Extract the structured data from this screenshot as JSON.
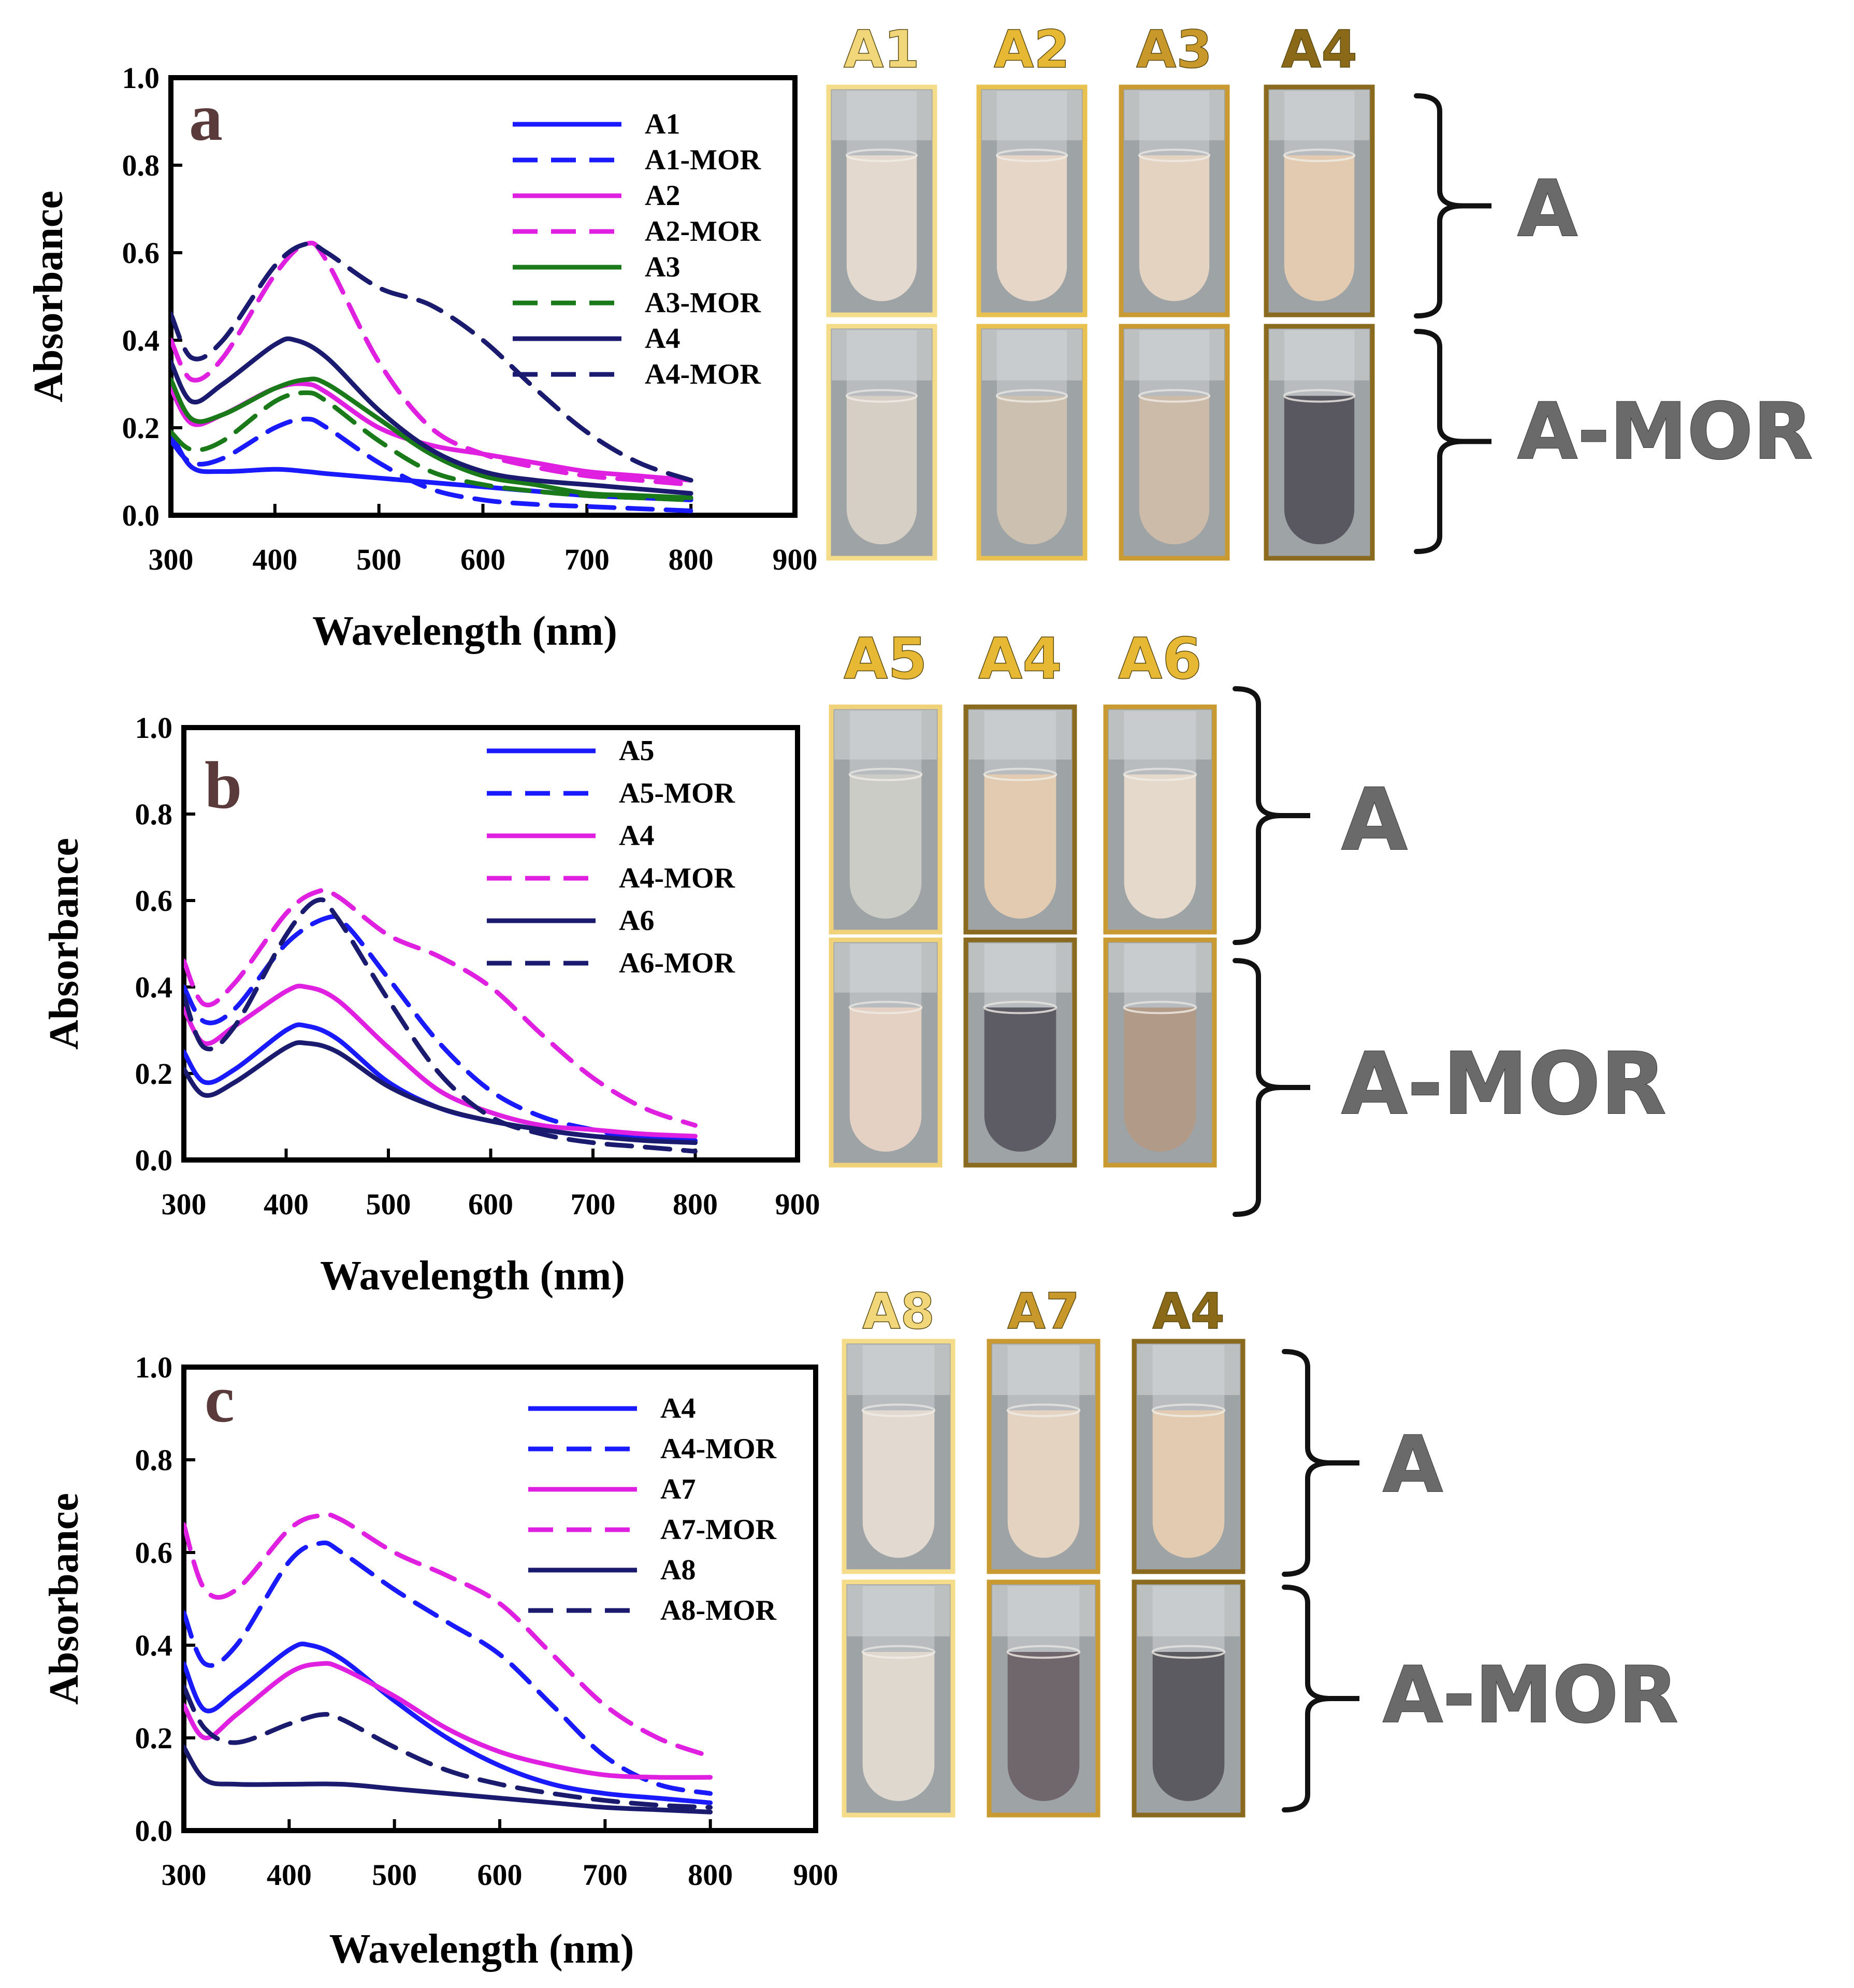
{
  "colors": {
    "blue": "#1a1aff",
    "magenta": "#e020e0",
    "green": "#1a7a1a",
    "navy": "#1a1a6e",
    "bracket": "#111111",
    "group_label": "#6a6a6a"
  },
  "chart_data": [
    {
      "type": "line",
      "panel": "a",
      "xlabel": "Wavelength (nm)",
      "ylabel": "Absorbance",
      "xlim": [
        300,
        900
      ],
      "ylim": [
        0.0,
        1.0
      ],
      "xticks": [
        "300",
        "400",
        "500",
        "600",
        "700",
        "800",
        "900"
      ],
      "yticks": [
        "0.0",
        "0.2",
        "0.4",
        "0.6",
        "0.8",
        "1.0"
      ],
      "legend_position": "top-right",
      "series": [
        {
          "name": "A1",
          "color": "#1a1aff",
          "dash": "solid",
          "x": [
            300,
            320,
            350,
            400,
            430,
            450,
            500,
            550,
            600,
            650,
            700,
            750,
            800
          ],
          "y": [
            0.19,
            0.11,
            0.1,
            0.105,
            0.1,
            0.095,
            0.085,
            0.075,
            0.065,
            0.055,
            0.045,
            0.04,
            0.035
          ]
        },
        {
          "name": "A1-MOR",
          "color": "#1a1aff",
          "dash": "dashed",
          "x": [
            300,
            320,
            350,
            400,
            430,
            450,
            500,
            550,
            600,
            650,
            700,
            750,
            800
          ],
          "y": [
            0.17,
            0.12,
            0.13,
            0.2,
            0.22,
            0.2,
            0.12,
            0.06,
            0.035,
            0.025,
            0.02,
            0.015,
            0.01
          ]
        },
        {
          "name": "A2",
          "color": "#e020e0",
          "dash": "solid",
          "x": [
            300,
            320,
            350,
            400,
            430,
            450,
            500,
            550,
            600,
            650,
            700,
            750,
            800
          ],
          "y": [
            0.29,
            0.21,
            0.23,
            0.29,
            0.3,
            0.28,
            0.2,
            0.16,
            0.14,
            0.12,
            0.1,
            0.09,
            0.08
          ]
        },
        {
          "name": "A2-MOR",
          "color": "#e020e0",
          "dash": "dashed",
          "x": [
            300,
            320,
            350,
            400,
            430,
            450,
            500,
            550,
            600,
            650,
            700,
            750,
            800
          ],
          "y": [
            0.4,
            0.31,
            0.36,
            0.55,
            0.62,
            0.58,
            0.35,
            0.2,
            0.14,
            0.11,
            0.09,
            0.08,
            0.07
          ]
        },
        {
          "name": "A3",
          "color": "#1a7a1a",
          "dash": "solid",
          "x": [
            300,
            320,
            350,
            400,
            430,
            450,
            500,
            550,
            600,
            650,
            700,
            750,
            800
          ],
          "y": [
            0.31,
            0.22,
            0.23,
            0.29,
            0.31,
            0.3,
            0.22,
            0.14,
            0.09,
            0.07,
            0.05,
            0.045,
            0.04
          ]
        },
        {
          "name": "A3-MOR",
          "color": "#1a7a1a",
          "dash": "dashed",
          "x": [
            300,
            320,
            350,
            400,
            430,
            450,
            500,
            550,
            600,
            650,
            700,
            750,
            800
          ],
          "y": [
            0.19,
            0.15,
            0.17,
            0.26,
            0.28,
            0.26,
            0.17,
            0.1,
            0.07,
            0.055,
            0.045,
            0.04,
            0.035
          ]
        },
        {
          "name": "A4",
          "color": "#1a1a6e",
          "dash": "solid",
          "x": [
            300,
            320,
            350,
            400,
            420,
            450,
            500,
            550,
            600,
            650,
            700,
            750,
            800
          ],
          "y": [
            0.35,
            0.26,
            0.3,
            0.39,
            0.4,
            0.36,
            0.24,
            0.15,
            0.1,
            0.08,
            0.07,
            0.06,
            0.05
          ]
        },
        {
          "name": "A4-MOR",
          "color": "#1a1a6e",
          "dash": "dashed",
          "x": [
            300,
            320,
            350,
            400,
            430,
            450,
            500,
            550,
            600,
            650,
            700,
            750,
            800
          ],
          "y": [
            0.46,
            0.36,
            0.4,
            0.57,
            0.62,
            0.6,
            0.52,
            0.48,
            0.4,
            0.29,
            0.19,
            0.12,
            0.08
          ]
        }
      ]
    },
    {
      "type": "line",
      "panel": "b",
      "xlabel": "Wavelength (nm)",
      "ylabel": "Absorbance",
      "xlim": [
        300,
        900
      ],
      "ylim": [
        0.0,
        1.0
      ],
      "xticks": [
        "300",
        "400",
        "500",
        "600",
        "700",
        "800",
        "900"
      ],
      "yticks": [
        "0.0",
        "0.2",
        "0.4",
        "0.6",
        "0.8",
        "1.0"
      ],
      "legend_position": "top-right",
      "series": [
        {
          "name": "A5",
          "color": "#1a1aff",
          "dash": "solid",
          "x": [
            300,
            320,
            350,
            400,
            420,
            450,
            500,
            550,
            600,
            650,
            700,
            750,
            800
          ],
          "y": [
            0.25,
            0.18,
            0.21,
            0.3,
            0.31,
            0.28,
            0.18,
            0.12,
            0.09,
            0.07,
            0.055,
            0.05,
            0.045
          ]
        },
        {
          "name": "A5-MOR",
          "color": "#1a1aff",
          "dash": "dashed",
          "x": [
            300,
            320,
            350,
            400,
            440,
            460,
            500,
            550,
            600,
            650,
            700,
            750,
            800
          ],
          "y": [
            0.4,
            0.32,
            0.35,
            0.5,
            0.56,
            0.54,
            0.42,
            0.27,
            0.16,
            0.1,
            0.07,
            0.05,
            0.04
          ]
        },
        {
          "name": "A4",
          "color": "#e020e0",
          "dash": "solid",
          "x": [
            300,
            320,
            350,
            400,
            420,
            450,
            500,
            550,
            600,
            650,
            700,
            750,
            800
          ],
          "y": [
            0.35,
            0.27,
            0.31,
            0.39,
            0.4,
            0.37,
            0.26,
            0.16,
            0.11,
            0.08,
            0.07,
            0.06,
            0.055
          ]
        },
        {
          "name": "A4-MOR",
          "color": "#e020e0",
          "dash": "dashed",
          "x": [
            300,
            320,
            350,
            400,
            430,
            450,
            500,
            550,
            600,
            650,
            700,
            750,
            800
          ],
          "y": [
            0.46,
            0.36,
            0.41,
            0.57,
            0.62,
            0.61,
            0.52,
            0.47,
            0.4,
            0.29,
            0.19,
            0.12,
            0.08
          ]
        },
        {
          "name": "A6",
          "color": "#1a1a6e",
          "dash": "solid",
          "x": [
            300,
            320,
            350,
            400,
            420,
            450,
            500,
            550,
            600,
            650,
            700,
            750,
            800
          ],
          "y": [
            0.21,
            0.15,
            0.18,
            0.26,
            0.27,
            0.25,
            0.17,
            0.12,
            0.09,
            0.07,
            0.055,
            0.045,
            0.04
          ]
        },
        {
          "name": "A6-MOR",
          "color": "#1a1a6e",
          "dash": "dashed",
          "x": [
            300,
            320,
            350,
            400,
            430,
            450,
            500,
            550,
            600,
            650,
            700,
            750,
            800
          ],
          "y": [
            0.38,
            0.26,
            0.31,
            0.52,
            0.6,
            0.56,
            0.37,
            0.2,
            0.1,
            0.06,
            0.04,
            0.03,
            0.02
          ]
        }
      ]
    },
    {
      "type": "line",
      "panel": "c",
      "xlabel": "Wavelength (nm)",
      "ylabel": "Absorbance",
      "xlim": [
        300,
        900
      ],
      "ylim": [
        0.0,
        1.0
      ],
      "xticks": [
        "300",
        "400",
        "500",
        "600",
        "700",
        "800",
        "900"
      ],
      "yticks": [
        "0.0",
        "0.2",
        "0.4",
        "0.6",
        "0.8",
        "1.0"
      ],
      "legend_position": "top-right",
      "series": [
        {
          "name": "A4",
          "color": "#1a1aff",
          "dash": "solid",
          "x": [
            300,
            320,
            350,
            400,
            420,
            450,
            500,
            550,
            600,
            650,
            700,
            750,
            800
          ],
          "y": [
            0.36,
            0.26,
            0.3,
            0.39,
            0.4,
            0.37,
            0.28,
            0.2,
            0.14,
            0.1,
            0.08,
            0.07,
            0.06
          ]
        },
        {
          "name": "A4-MOR",
          "color": "#1a1aff",
          "dash": "dashed",
          "x": [
            300,
            320,
            350,
            400,
            430,
            450,
            500,
            550,
            600,
            650,
            700,
            750,
            800
          ],
          "y": [
            0.47,
            0.36,
            0.4,
            0.58,
            0.62,
            0.6,
            0.52,
            0.45,
            0.38,
            0.27,
            0.16,
            0.1,
            0.08
          ]
        },
        {
          "name": "A7",
          "color": "#e020e0",
          "dash": "solid",
          "x": [
            300,
            320,
            350,
            400,
            430,
            450,
            500,
            550,
            600,
            650,
            700,
            750,
            800
          ],
          "y": [
            0.27,
            0.2,
            0.25,
            0.34,
            0.36,
            0.35,
            0.29,
            0.22,
            0.17,
            0.14,
            0.12,
            0.115,
            0.115
          ]
        },
        {
          "name": "A7-MOR",
          "color": "#e020e0",
          "dash": "dashed",
          "x": [
            300,
            320,
            350,
            400,
            430,
            450,
            500,
            550,
            600,
            650,
            700,
            750,
            800
          ],
          "y": [
            0.66,
            0.52,
            0.52,
            0.65,
            0.68,
            0.67,
            0.6,
            0.55,
            0.49,
            0.38,
            0.27,
            0.2,
            0.16
          ]
        },
        {
          "name": "A8",
          "color": "#1a1a6e",
          "dash": "solid",
          "x": [
            300,
            320,
            350,
            400,
            450,
            500,
            550,
            600,
            650,
            700,
            750,
            800
          ],
          "y": [
            0.18,
            0.11,
            0.1,
            0.1,
            0.1,
            0.09,
            0.08,
            0.07,
            0.06,
            0.05,
            0.045,
            0.04
          ]
        },
        {
          "name": "A8-MOR",
          "color": "#1a1a6e",
          "dash": "dashed",
          "x": [
            300,
            320,
            350,
            400,
            430,
            450,
            500,
            550,
            600,
            650,
            700,
            750,
            800
          ],
          "y": [
            0.31,
            0.22,
            0.19,
            0.23,
            0.25,
            0.24,
            0.18,
            0.13,
            0.1,
            0.08,
            0.065,
            0.055,
            0.05
          ]
        }
      ]
    }
  ],
  "photo_panels": [
    {
      "panel": "a",
      "samples": [
        {
          "label": "A1",
          "label_color": "#f2d77a",
          "frame_color": "#f4dc8a",
          "top_tint": "#e8dcd0",
          "bottom_tint": "#d8d2c6",
          "bottom_frame_color": "#f4dc8a"
        },
        {
          "label": "A2",
          "label_color": "#e6b834",
          "frame_color": "#e9c150",
          "top_tint": "#e9d9c8",
          "bottom_tint": "#cfc2b0",
          "bottom_frame_color": "#e9c150"
        },
        {
          "label": "A3",
          "label_color": "#c9982a",
          "frame_color": "#c99a32",
          "top_tint": "#e8d6c2",
          "bottom_tint": "#cdbda8",
          "bottom_frame_color": "#c99a32"
        },
        {
          "label": "A4",
          "label_color": "#8a6a18",
          "frame_color": "#8a6a1e",
          "top_tint": "#e6cdb0",
          "bottom_tint": "#55545c",
          "bottom_frame_color": "#8a6a1e"
        }
      ],
      "group_labels": [
        "A",
        "A-MOR"
      ]
    },
    {
      "panel": "b",
      "samples": [
        {
          "label": "A5",
          "label_color": "#e6b834",
          "frame_color": "#f0d27a",
          "top_tint": "#cfcfc8",
          "bottom_tint": "#e8d4c4",
          "bottom_frame_color": "#f0d27a"
        },
        {
          "label": "A4",
          "label_color": "#e6b834",
          "frame_color": "#8a6a1e",
          "top_tint": "#e6cdb0",
          "bottom_tint": "#5a5860",
          "bottom_frame_color": "#8a6a1e"
        },
        {
          "label": "A6",
          "label_color": "#e6b834",
          "frame_color": "#c99a32",
          "top_tint": "#e9dccd",
          "bottom_tint": "#b39a86",
          "bottom_frame_color": "#c99a32"
        }
      ],
      "group_labels": [
        "A",
        "A-MOR"
      ]
    },
    {
      "panel": "c",
      "samples": [
        {
          "label": "A8",
          "label_color": "#f2d77a",
          "frame_color": "#f4dc8a",
          "top_tint": "#e6ddd2",
          "bottom_tint": "#e3dbd0",
          "bottom_frame_color": "#f4dc8a"
        },
        {
          "label": "A7",
          "label_color": "#c9982a",
          "frame_color": "#c99a32",
          "top_tint": "#e8d6c2",
          "bottom_tint": "#6e6468",
          "bottom_frame_color": "#c99a32"
        },
        {
          "label": "A4",
          "label_color": "#8a6a18",
          "frame_color": "#8a6a1e",
          "top_tint": "#e6cdb0",
          "bottom_tint": "#58575e",
          "bottom_frame_color": "#8a6a1e"
        }
      ],
      "group_labels": [
        "A",
        "A-MOR"
      ]
    }
  ]
}
